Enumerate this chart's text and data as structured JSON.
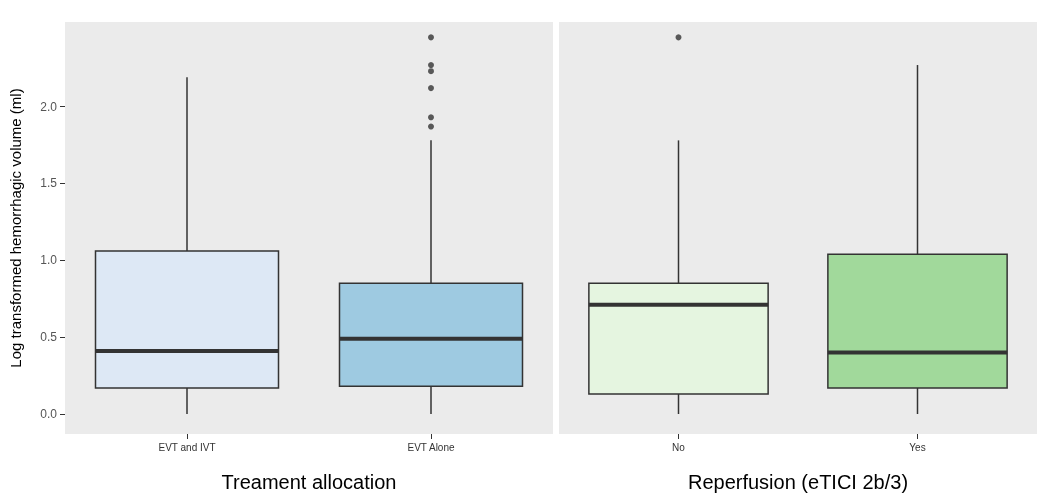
{
  "chart_data": [
    {
      "type": "box",
      "xlabel": "Treament allocation",
      "ylabel": "Log transformed hemorrhagic volume (ml)",
      "categories": [
        "EVT and IVT",
        "EVT Alone"
      ],
      "colors": [
        "#dde8f5",
        "#9ecae1"
      ],
      "boxes": [
        {
          "low": 0,
          "q1": 0.17,
          "median": 0.41,
          "q3": 1.06,
          "high": 2.19
        },
        {
          "low": 0,
          "q1": 0.18,
          "median": 0.49,
          "q3": 0.85,
          "high": 1.78,
          "outliers": [
            1.87,
            1.93,
            2.12,
            2.23,
            2.27,
            2.45
          ]
        }
      ],
      "ylim": [
        -0.13,
        2.55
      ],
      "yticks": [
        {
          "value": 0,
          "label": "0.0"
        },
        {
          "value": 0.5,
          "label": "0.5"
        },
        {
          "value": 1,
          "label": "1.0"
        },
        {
          "value": 1.5,
          "label": "1.5"
        },
        {
          "value": 2,
          "label": "2.0"
        }
      ],
      "grid": false
    },
    {
      "type": "box",
      "xlabel": "Reperfusion (eTICI 2b/3)",
      "categories": [
        "No",
        "Yes"
      ],
      "colors": [
        "#e5f5e0",
        "#a1d99b"
      ],
      "boxes": [
        {
          "low": 0,
          "q1": 0.13,
          "median": 0.71,
          "q3": 0.85,
          "high": 1.78,
          "outliers": [
            2.45
          ]
        },
        {
          "low": 0,
          "q1": 0.17,
          "median": 0.4,
          "q3": 1.04,
          "high": 2.27
        }
      ],
      "ylim": [
        -0.13,
        2.55
      ],
      "tick_labels": "x",
      "grid": false
    }
  ]
}
